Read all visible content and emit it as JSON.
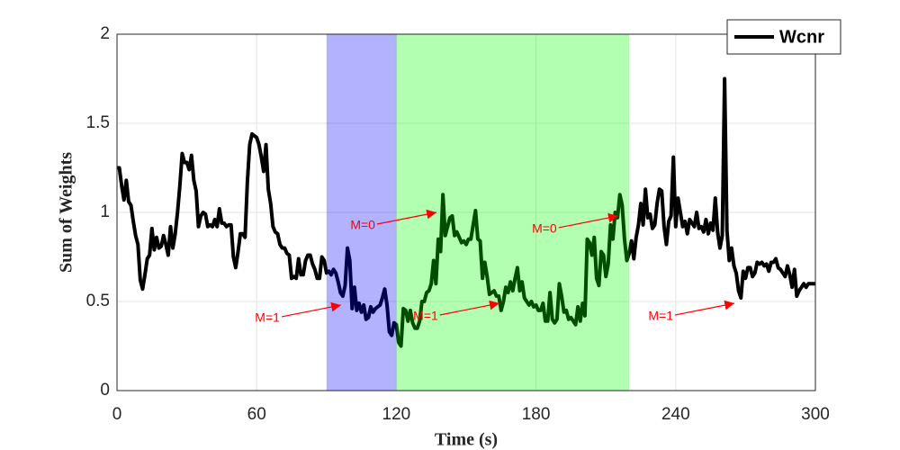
{
  "chart_data": {
    "type": "line",
    "xlabel": "Time (s)",
    "ylabel": "Sum of Weights",
    "xlim": [
      0,
      300
    ],
    "xticks": [
      0,
      60,
      120,
      180,
      240,
      300
    ],
    "ylim": [
      0,
      2
    ],
    "yticks": [
      0,
      0.5,
      1,
      1.5,
      2
    ],
    "grid": true,
    "legend": "upper right",
    "shaded_regions": [
      {
        "x": [
          90,
          120
        ],
        "color": "#0000ff",
        "opacity": 0.3
      },
      {
        "x": [
          120,
          220
        ],
        "color": "#00ff00",
        "opacity": 0.3
      }
    ],
    "annotations": [
      {
        "text": "M=0",
        "x": 138,
        "y": 1.0,
        "color": "#ff0000"
      },
      {
        "text": "M=1",
        "x": 97,
        "y": 0.48,
        "color": "#ff0000"
      },
      {
        "text": "M=1",
        "x": 165,
        "y": 0.49,
        "color": "#ff0000"
      },
      {
        "text": "M=0",
        "x": 216,
        "y": 0.98,
        "color": "#ff0000"
      },
      {
        "text": "M=1",
        "x": 266,
        "y": 0.49,
        "color": "#ff0000"
      }
    ],
    "x": [
      0,
      1,
      2,
      3,
      4,
      5,
      6,
      7,
      8,
      9,
      10,
      11,
      12,
      13,
      14,
      15,
      16,
      17,
      18,
      19,
      20,
      21,
      22,
      23,
      24,
      25,
      26,
      27,
      28,
      29,
      30,
      31,
      32,
      33,
      34,
      35,
      36,
      37,
      38,
      39,
      40,
      41,
      42,
      43,
      44,
      45,
      46,
      47,
      48,
      49,
      50,
      51,
      52,
      53,
      54,
      55,
      56,
      57,
      58,
      59,
      60,
      61,
      62,
      63,
      64,
      65,
      66,
      67,
      68,
      69,
      70,
      71,
      72,
      73,
      74,
      75,
      76,
      77,
      78,
      79,
      80,
      81,
      82,
      83,
      84,
      85,
      86,
      87,
      88,
      89,
      90,
      91,
      92,
      93,
      94,
      95,
      96,
      97,
      98,
      99,
      100,
      101,
      102,
      103,
      104,
      105,
      106,
      107,
      108,
      109,
      110,
      111,
      112,
      113,
      114,
      115,
      116,
      117,
      118,
      119,
      120,
      121,
      122,
      123,
      124,
      125,
      126,
      127,
      128,
      129,
      130,
      131,
      132,
      133,
      134,
      135,
      136,
      137,
      138,
      139,
      140,
      141,
      142,
      143,
      144,
      145,
      146,
      147,
      148,
      149,
      150,
      151,
      152,
      153,
      154,
      155,
      156,
      157,
      158,
      159,
      160,
      161,
      162,
      163,
      164,
      165,
      166,
      167,
      168,
      169,
      170,
      171,
      172,
      173,
      174,
      175,
      176,
      177,
      178,
      179,
      180,
      181,
      182,
      183,
      184,
      185,
      186,
      187,
      188,
      189,
      190,
      191,
      192,
      193,
      194,
      195,
      196,
      197,
      198,
      199,
      200,
      201,
      202,
      203,
      204,
      205,
      206,
      207,
      208,
      209,
      210,
      211,
      212,
      213,
      214,
      215,
      216,
      217,
      218,
      219,
      220,
      221,
      222,
      223,
      224,
      225,
      226,
      227,
      228,
      229,
      230,
      231,
      232,
      233,
      234,
      235,
      236,
      237,
      238,
      239,
      240,
      241,
      242,
      243,
      244,
      245,
      246,
      247,
      248,
      249,
      250,
      251,
      252,
      253,
      254,
      255,
      256,
      257,
      258,
      259,
      260,
      261,
      262,
      263,
      264,
      265,
      266,
      267,
      268,
      269,
      270,
      271,
      272,
      273,
      274,
      275,
      276,
      277,
      278,
      279,
      280,
      281,
      282,
      283,
      284,
      285,
      286,
      287,
      288,
      289,
      290,
      291,
      292,
      293,
      294,
      295,
      296,
      297,
      298,
      299,
      300
    ],
    "series": [
      {
        "name": "Wcnr",
        "color": "#000000",
        "values": [
          1.25,
          1.25,
          1.15,
          1.07,
          1.18,
          1.06,
          1.04,
          0.95,
          0.87,
          0.82,
          0.62,
          0.57,
          0.65,
          0.74,
          0.76,
          0.91,
          0.79,
          0.86,
          0.8,
          0.81,
          0.87,
          0.82,
          0.76,
          0.92,
          0.8,
          0.88,
          1.0,
          1.15,
          1.33,
          1.28,
          1.28,
          1.24,
          1.32,
          1.18,
          1.12,
          0.92,
          0.98,
          1.0,
          0.99,
          0.92,
          0.93,
          0.92,
          0.96,
          0.92,
          1.02,
          0.94,
          0.94,
          0.92,
          0.93,
          0.93,
          0.75,
          0.69,
          0.78,
          0.88,
          0.88,
          0.86,
          1.17,
          1.38,
          1.44,
          1.43,
          1.42,
          1.38,
          1.31,
          1.23,
          1.38,
          1.13,
          1.05,
          0.92,
          0.89,
          0.88,
          0.82,
          0.8,
          0.8,
          0.77,
          0.76,
          0.63,
          0.64,
          0.63,
          0.74,
          0.65,
          0.65,
          0.73,
          0.76,
          0.76,
          0.71,
          0.68,
          0.63,
          0.63,
          0.75,
          0.73,
          0.66,
          0.67,
          0.65,
          0.68,
          0.66,
          0.61,
          0.55,
          0.53,
          0.59,
          0.8,
          0.73,
          0.46,
          0.58,
          0.45,
          0.49,
          0.44,
          0.48,
          0.4,
          0.41,
          0.47,
          0.44,
          0.46,
          0.47,
          0.48,
          0.52,
          0.57,
          0.48,
          0.33,
          0.31,
          0.38,
          0.37,
          0.27,
          0.25,
          0.46,
          0.45,
          0.39,
          0.45,
          0.38,
          0.35,
          0.35,
          0.39,
          0.5,
          0.5,
          0.55,
          0.56,
          0.6,
          0.73,
          0.6,
          0.85,
          0.78,
          1.1,
          0.87,
          0.92,
          0.97,
          0.98,
          0.87,
          0.89,
          0.86,
          0.83,
          0.84,
          0.82,
          0.85,
          0.85,
          0.93,
          1.01,
          0.85,
          0.84,
          0.63,
          0.72,
          0.64,
          0.54,
          0.55,
          0.56,
          0.53,
          0.53,
          0.45,
          0.5,
          0.58,
          0.55,
          0.61,
          0.56,
          0.63,
          0.69,
          0.56,
          0.61,
          0.52,
          0.5,
          0.48,
          0.5,
          0.47,
          0.48,
          0.45,
          0.45,
          0.49,
          0.39,
          0.39,
          0.55,
          0.4,
          0.38,
          0.4,
          0.6,
          0.53,
          0.44,
          0.45,
          0.4,
          0.41,
          0.39,
          0.37,
          0.47,
          0.39,
          0.49,
          0.42,
          0.85,
          0.83,
          0.76,
          0.86,
          0.63,
          0.59,
          0.78,
          0.76,
          0.64,
          0.71,
          0.93,
          0.85,
          1.0,
          0.97,
          1.1,
          1.04,
          0.85,
          0.73,
          0.77,
          0.84,
          0.74,
          0.86,
          0.93,
          1.05,
          0.93,
          1.13,
          0.97,
          0.99,
          0.91,
          0.93,
          1.05,
          1.13,
          1.12,
          0.92,
          0.82,
          0.95,
          0.98,
          1.31,
          0.92,
          1.08,
          1.0,
          0.92,
          0.95,
          0.88,
          0.96,
          0.94,
          0.92,
          1.0,
          0.91,
          0.92,
          0.89,
          0.96,
          0.88,
          0.94,
          0.9,
          1.08,
          0.89,
          0.8,
          0.87,
          1.75,
          0.9,
          0.73,
          0.8,
          0.7,
          0.66,
          0.56,
          0.52,
          0.67,
          0.63,
          0.69,
          0.69,
          0.64,
          0.66,
          0.72,
          0.71,
          0.72,
          0.7,
          0.71,
          0.67,
          0.72,
          0.72,
          0.74,
          0.69,
          0.68,
          0.66,
          0.64,
          0.7,
          0.65,
          0.58,
          0.68,
          0.53,
          0.56,
          0.58,
          0.6,
          0.58,
          0.6,
          0.6,
          0.6,
          0.6
        ]
      }
    ]
  }
}
